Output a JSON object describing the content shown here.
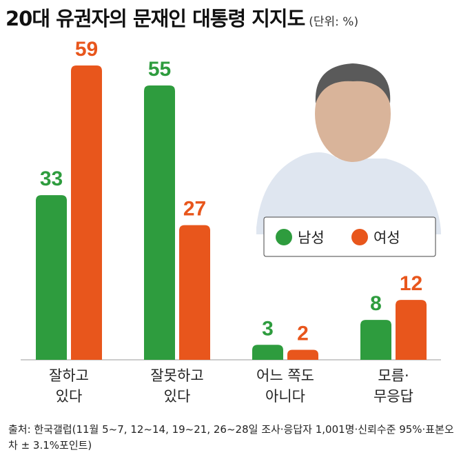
{
  "chart_data": {
    "type": "bar",
    "title": "20대 유권자의 문재인 대통령 지지도",
    "subtitle": "(단위: %)",
    "categories": [
      "잘하고\n있다",
      "잘못하고\n있다",
      "어느 쪽도\n아니다",
      "모름·\n무응답"
    ],
    "series": [
      {
        "name": "남성",
        "color": "#2e9c3e",
        "values": [
          33,
          55,
          3,
          8
        ]
      },
      {
        "name": "여성",
        "color": "#e8561c",
        "values": [
          59,
          27,
          2,
          12
        ]
      }
    ],
    "source": "출처: 한국갤럽(11월 5~7, 12~14, 19~21, 26~28일 조사·응답자 1,001명·신뢰수준 95%·표본오차 ± 3.1%포인트)"
  }
}
